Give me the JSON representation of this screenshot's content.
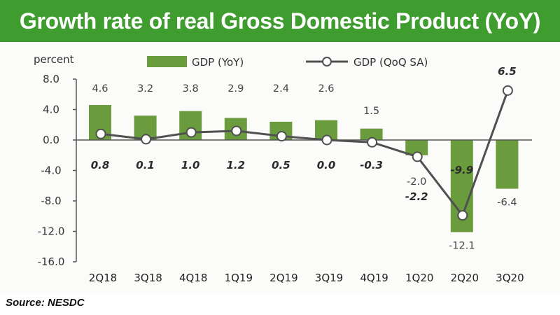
{
  "title": "Growth rate of real Gross Domestic Product (YoY)",
  "source": "Source: NESDC",
  "colors": {
    "banner": "#3f9c2e",
    "bar": "#6a9b3c",
    "line": "#505050",
    "marker_fill": "#ffffff"
  },
  "chart_data": {
    "type": "bar",
    "ylabel": "percent",
    "ylim": [
      -16.0,
      8.0
    ],
    "yticks": [
      "8.0",
      "4.0",
      "0.0",
      "-4.0",
      "-8.0",
      "-12.0",
      "-16.0"
    ],
    "ytick_values": [
      8,
      4,
      0,
      -4,
      -8,
      -12,
      -16
    ],
    "categories": [
      "2Q18",
      "3Q18",
      "4Q18",
      "1Q19",
      "2Q19",
      "3Q19",
      "4Q19",
      "1Q20",
      "2Q20",
      "3Q20"
    ],
    "series": [
      {
        "name": "GDP (YoY)",
        "type": "bar",
        "values": [
          4.6,
          3.2,
          3.8,
          2.9,
          2.4,
          2.6,
          1.5,
          -2.0,
          -12.1,
          -6.4
        ],
        "labels": [
          "4.6",
          "3.2",
          "3.8",
          "2.9",
          "2.4",
          "2.6",
          "1.5",
          "-2.0",
          "-12.1",
          "-6.4"
        ]
      },
      {
        "name": "GDP (QoQ SA)",
        "type": "line",
        "values": [
          0.8,
          0.1,
          1.0,
          1.2,
          0.5,
          0.0,
          -0.3,
          -2.2,
          -9.9,
          6.5
        ],
        "labels": [
          "0.8",
          "0.1",
          "1.0",
          "1.2",
          "0.5",
          "0.0",
          "-0.3",
          "-2.2",
          "-9.9",
          "6.5"
        ]
      }
    ],
    "legend": "top",
    "grid": false
  }
}
